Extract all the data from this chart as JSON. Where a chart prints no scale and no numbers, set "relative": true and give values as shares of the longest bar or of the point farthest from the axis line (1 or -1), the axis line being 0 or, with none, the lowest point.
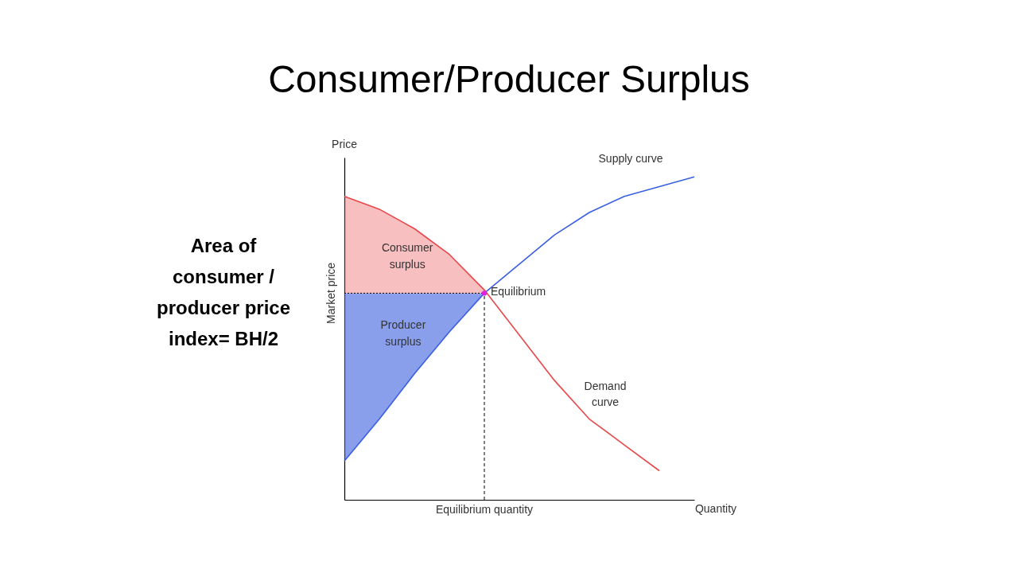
{
  "chart_data": {
    "type": "line",
    "title": "Consumer/Producer Surplus",
    "xlabel": "Quantity",
    "ylabel": "Price",
    "relative": true,
    "categories": [
      null,
      null,
      null,
      null,
      null,
      null,
      null,
      null,
      null,
      null,
      null
    ],
    "series": [
      {
        "name": "Supply curve",
        "color": "#3a5fe0",
        "values": [
          0.12,
          0.25,
          0.39,
          0.52,
          0.64,
          0.73,
          0.82,
          0.89,
          0.94,
          0.97,
          1
        ],
        "lower": [
          0.12,
          0.25,
          0.39,
          0.52,
          0.64,
          null,
          null,
          null,
          null,
          null,
          null
        ],
        "upper": [
          0.64,
          0.64,
          0.64,
          0.64,
          0.64,
          null,
          null,
          null,
          null,
          null,
          null
        ]
      },
      {
        "name": "Demand curve",
        "color": "#e8474a",
        "values": [
          0.94,
          0.9,
          0.84,
          0.76,
          0.65,
          0.51,
          0.37,
          0.25,
          0.17,
          0.09,
          null
        ],
        "lower": [
          0.64,
          0.64,
          0.64,
          0.64,
          0.64,
          null,
          null,
          null,
          null,
          null,
          null
        ],
        "upper": [
          0.94,
          0.9,
          0.84,
          0.76,
          0.65,
          null,
          null,
          null,
          null,
          null,
          null
        ]
      }
    ],
    "ref_lines": [
      {
        "axis": "y",
        "value": 0.64,
        "label": "Market price",
        "line_style": "dotted"
      },
      {
        "axis": "x",
        "label": "Equilibrium quantity",
        "line_style": "dashed"
      }
    ],
    "annotations": [
      "Equilibrium",
      "Consumer surplus",
      "Producer surplus",
      "Area of consumer / producer price index= BH/2"
    ],
    "legend": false,
    "grid": false,
    "marker": "none",
    "line_style": "solid"
  }
}
